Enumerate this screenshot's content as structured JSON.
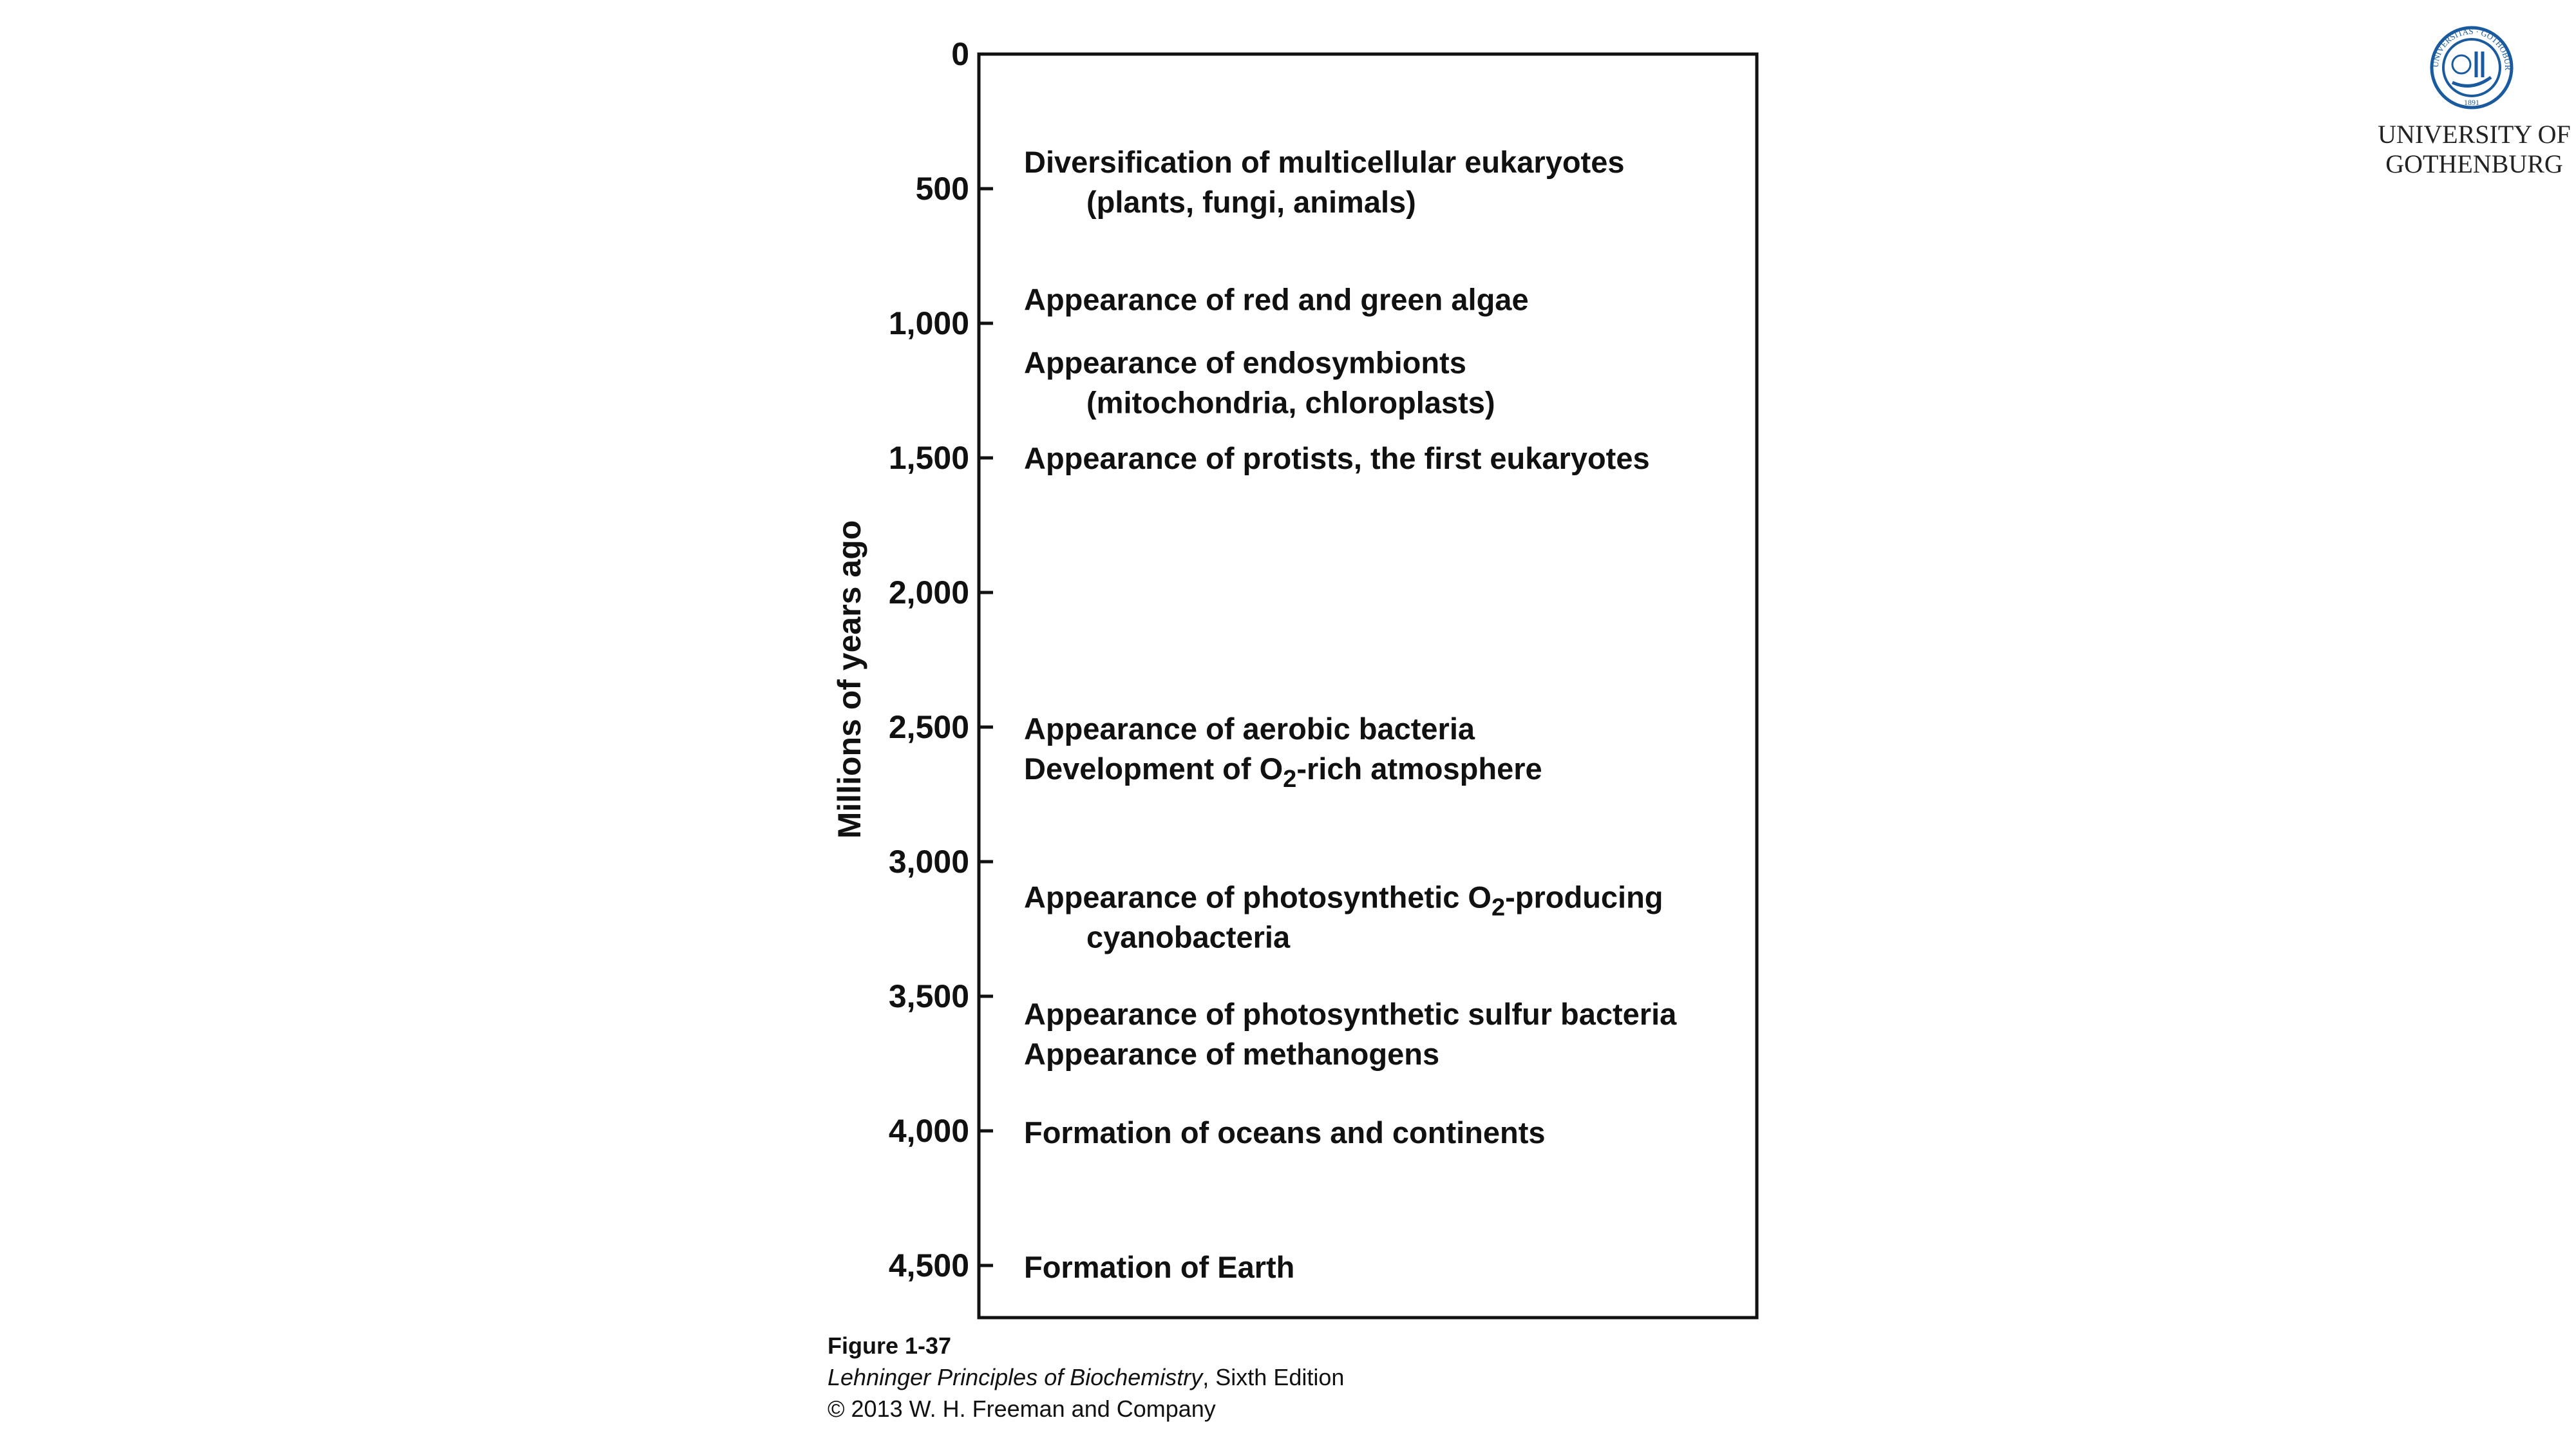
{
  "chart_data": {
    "type": "timeline",
    "ylabel": "Millions of years ago",
    "ylim": [
      0,
      4700
    ],
    "y_direction": "downward",
    "ticks": [
      {
        "value": 0,
        "label": "0"
      },
      {
        "value": 500,
        "label": "500"
      },
      {
        "value": 1000,
        "label": "1,000"
      },
      {
        "value": 1500,
        "label": "1,500"
      },
      {
        "value": 2000,
        "label": "2,000"
      },
      {
        "value": 2500,
        "label": "2,500"
      },
      {
        "value": 3000,
        "label": "3,000"
      },
      {
        "value": 3500,
        "label": "3,500"
      },
      {
        "value": 4000,
        "label": "4,000"
      },
      {
        "value": 4500,
        "label": "4,500"
      }
    ],
    "events": [
      {
        "mya": 400,
        "lines": [
          {
            "indent": false,
            "parts": [
              "Diversification of multicellular eukaryotes"
            ]
          },
          {
            "indent": true,
            "parts": [
              "(plants, fungi, animals)"
            ]
          }
        ]
      },
      {
        "mya": 910,
        "lines": [
          {
            "indent": false,
            "parts": [
              "Appearance of red and green algae"
            ]
          }
        ]
      },
      {
        "mya": 1145,
        "lines": [
          {
            "indent": false,
            "parts": [
              "Appearance of endosymbionts"
            ]
          },
          {
            "indent": true,
            "parts": [
              "(mitochondria, chloroplasts)"
            ]
          }
        ]
      },
      {
        "mya": 1500,
        "lines": [
          {
            "indent": false,
            "parts": [
              "Appearance of protists, the first eukaryotes"
            ]
          }
        ]
      },
      {
        "mya": 2505,
        "lines": [
          {
            "indent": false,
            "parts": [
              "Appearance of aerobic bacteria"
            ]
          },
          {
            "indent": false,
            "parts": [
              "Development of O",
              "2",
              "-rich atmosphere"
            ]
          }
        ]
      },
      {
        "mya": 3130,
        "lines": [
          {
            "indent": false,
            "parts": [
              "Appearance of photosynthetic O",
              "2",
              "-producing"
            ]
          },
          {
            "indent": true,
            "parts": [
              "cyanobacteria"
            ]
          }
        ]
      },
      {
        "mya": 3565,
        "lines": [
          {
            "indent": false,
            "parts": [
              "Appearance of photosynthetic sulfur bacteria"
            ]
          },
          {
            "indent": false,
            "parts": [
              "Appearance of methanogens"
            ]
          }
        ]
      },
      {
        "mya": 4005,
        "lines": [
          {
            "indent": false,
            "parts": [
              "Formation of oceans and continents"
            ]
          }
        ]
      },
      {
        "mya": 4505,
        "lines": [
          {
            "indent": false,
            "parts": [
              "Formation of Earth"
            ]
          }
        ]
      }
    ]
  },
  "caption": {
    "figure": "Figure 1-37",
    "book_title": "Lehninger Principles of Biochemistry",
    "book_edition": ", Sixth Edition",
    "copyright": "© 2013 W. H. Freeman and Company"
  },
  "logo": {
    "seal_text": "UNIVERSITAS · GOTHOBURGENSIS ·",
    "seal_year": "1891",
    "line1": "UNIVERSITY OF",
    "line2": "GOTHENBURG",
    "color": "#1a5a9e"
  }
}
